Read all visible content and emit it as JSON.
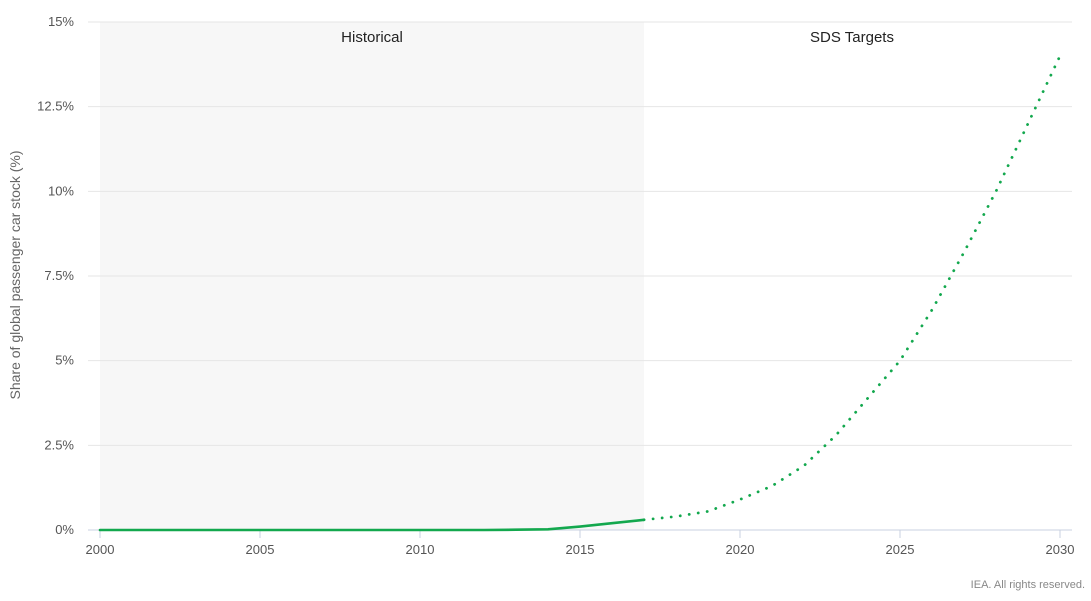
{
  "chart_data": {
    "type": "line",
    "ylabel": "Share of global passenger car stock (%)",
    "xlim": [
      2000,
      2030
    ],
    "ylim": [
      0,
      15
    ],
    "x_ticks": [
      2000,
      2005,
      2010,
      2015,
      2020,
      2025,
      2030
    ],
    "y_ticks": [
      0,
      2.5,
      5,
      7.5,
      10,
      12.5,
      15
    ],
    "y_tick_labels": [
      "0%",
      "2.5%",
      "5%",
      "7.5%",
      "10%",
      "12.5%",
      "15%"
    ],
    "grid": true,
    "bands": [
      {
        "label": "Historical",
        "from": 2000,
        "to": 2017,
        "color": "#f7f7f7"
      },
      {
        "label": "SDS Targets",
        "from": 2017,
        "to": 2030,
        "color": "#ffffff"
      }
    ],
    "series": [
      {
        "style": "solid",
        "color": "#13a84e",
        "x": [
          2000,
          2001,
          2002,
          2003,
          2004,
          2005,
          2006,
          2007,
          2008,
          2009,
          2010,
          2011,
          2012,
          2013,
          2014,
          2015,
          2016,
          2017
        ],
        "y": [
          0,
          0,
          0,
          0,
          0,
          0,
          0,
          0,
          0,
          0,
          0,
          0,
          0,
          0.01,
          0.02,
          0.1,
          0.2,
          0.3
        ]
      },
      {
        "style": "dotted",
        "color": "#13a84e",
        "x": [
          2017,
          2018,
          2019,
          2020,
          2021,
          2022,
          2023,
          2024,
          2025,
          2026,
          2027,
          2028,
          2029,
          2030
        ],
        "y": [
          0.3,
          0.4,
          0.55,
          0.9,
          1.3,
          1.9,
          2.8,
          3.9,
          5.0,
          6.5,
          8.2,
          10.0,
          12.0,
          14.0
        ]
      }
    ]
  },
  "credit": "IEA. All rights reserved."
}
